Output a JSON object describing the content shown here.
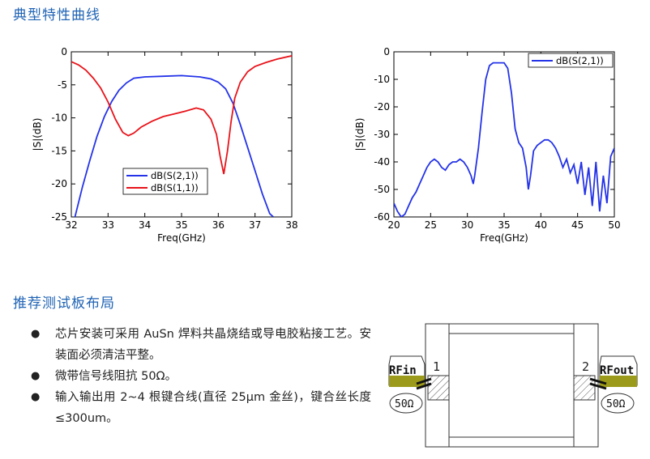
{
  "sections": {
    "characteristics_title": "典型特性曲线",
    "layout_title": "推荐测试板布局"
  },
  "chart_data": [
    {
      "type": "line",
      "xlabel": "Freq(GHz)",
      "ylabel": "|S|(dB)",
      "xlim": [
        32,
        38
      ],
      "ylim": [
        -25,
        0
      ],
      "xticks": [
        "32",
        "33",
        "34",
        "35",
        "36",
        "37",
        "38"
      ],
      "yticks": [
        "0",
        "-5",
        "-10",
        "-15",
        "-20",
        "-25"
      ],
      "legend": {
        "placement": "bottom-left",
        "entries": [
          "dB(S(2,1))",
          "dB(S(1,1))"
        ]
      },
      "series": [
        {
          "name": "dB(S(2,1))",
          "color": "#2433e8",
          "x": [
            32.1,
            32.3,
            32.5,
            32.7,
            32.9,
            33.1,
            33.3,
            33.5,
            33.7,
            34.0,
            34.5,
            35.0,
            35.5,
            35.8,
            36.0,
            36.2,
            36.4,
            36.6,
            36.8,
            37.0,
            37.2,
            37.4,
            37.5
          ],
          "y": [
            -25,
            -20.5,
            -16.5,
            -12.8,
            -9.8,
            -7.5,
            -5.8,
            -4.7,
            -4.0,
            -3.8,
            -3.7,
            -3.6,
            -3.8,
            -4.1,
            -4.6,
            -5.6,
            -7.8,
            -11.0,
            -14.5,
            -18.0,
            -21.5,
            -24.5,
            -25
          ]
        },
        {
          "name": "dB(S(1,1))",
          "color": "#e8131a",
          "x": [
            32.0,
            32.2,
            32.4,
            32.6,
            32.8,
            33.0,
            33.2,
            33.4,
            33.55,
            33.7,
            33.9,
            34.2,
            34.5,
            34.8,
            35.1,
            35.4,
            35.6,
            35.8,
            35.95,
            36.05,
            36.15,
            36.25,
            36.35,
            36.45,
            36.6,
            36.8,
            37.0,
            37.3,
            37.6,
            38.0
          ],
          "y": [
            -1.5,
            -2.0,
            -2.8,
            -4.0,
            -5.5,
            -7.6,
            -10.2,
            -12.2,
            -12.7,
            -12.3,
            -11.4,
            -10.5,
            -9.8,
            -9.4,
            -9.0,
            -8.5,
            -8.8,
            -10.2,
            -12.5,
            -15.8,
            -18.5,
            -15.0,
            -10.5,
            -7.0,
            -4.6,
            -3.0,
            -2.2,
            -1.6,
            -1.1,
            -0.6
          ]
        }
      ]
    },
    {
      "type": "line",
      "xlabel": "Freq(GHz)",
      "ylabel": "|S|(dB)",
      "xlim": [
        20,
        50
      ],
      "ylim": [
        -60,
        0
      ],
      "xticks": [
        "20",
        "25",
        "30",
        "35",
        "40",
        "45",
        "50"
      ],
      "yticks": [
        "0",
        "-10",
        "-20",
        "-30",
        "-40",
        "-50",
        "-60"
      ],
      "legend": {
        "placement": "top-right",
        "entries": [
          "dB(S(2,1))"
        ]
      },
      "series": [
        {
          "name": "dB(S(2,1))",
          "color": "#2433e8",
          "x": [
            20.0,
            20.5,
            21.0,
            21.5,
            22.0,
            22.5,
            23.0,
            23.5,
            24.0,
            24.5,
            25.0,
            25.5,
            26.0,
            26.5,
            27.0,
            27.5,
            28.0,
            28.5,
            29.0,
            29.5,
            30.0,
            30.5,
            30.8,
            31.0,
            31.5,
            32.0,
            32.5,
            33.0,
            33.5,
            34.0,
            35.0,
            35.5,
            36.0,
            36.5,
            37.0,
            37.5,
            38.0,
            38.3,
            38.6,
            39.0,
            39.5,
            40.0,
            40.5,
            41.0,
            41.5,
            42.0,
            42.5,
            43.0,
            43.5,
            44.0,
            44.5,
            45.0,
            45.5,
            46.0,
            46.5,
            47.0,
            47.5,
            48.0,
            48.5,
            49.0,
            49.5,
            50.0
          ],
          "y": [
            -55,
            -58,
            -60,
            -59,
            -56,
            -53,
            -51,
            -48,
            -45,
            -42,
            -40,
            -39,
            -40,
            -42,
            -43,
            -41,
            -40,
            -40,
            -39,
            -40,
            -42,
            -45,
            -48,
            -45,
            -35,
            -22,
            -10,
            -5,
            -4,
            -4,
            -4,
            -6,
            -15,
            -28,
            -33,
            -35,
            -42,
            -50,
            -45,
            -36,
            -34,
            -33,
            -32,
            -32,
            -33,
            -35,
            -38,
            -42,
            -39,
            -44,
            -41,
            -48,
            -40,
            -52,
            -42,
            -56,
            -40,
            -58,
            -45,
            -55,
            -38,
            -35
          ]
        }
      ]
    }
  ],
  "bullets": [
    "芯片安装可采用 AuSn 焊料共晶烧结或导电胶粘接工艺。安装面必须清洁平整。",
    "微带信号线阻抗 50Ω。",
    "输入输出用 2~4 根键合线(直径 25μm 金丝)，键合丝长度≤300um。"
  ],
  "layout": {
    "rf_in_label": "RFin",
    "rf_out_label": "RFout",
    "impedance_in": "50Ω",
    "impedance_out": "50Ω",
    "port1": "1",
    "port2": "2",
    "pad_color": "#9c9a1a"
  }
}
